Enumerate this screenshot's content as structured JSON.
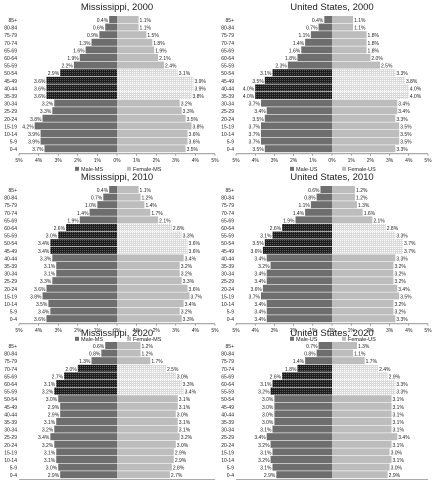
{
  "colors": {
    "male": "#6e6e6e",
    "female": "#bdbdbd",
    "male_highlight": "#1e1e1e",
    "female_highlight": "#dadada",
    "highlight_pattern": "dotted/hatched (baby-boom cohort)",
    "axis": "#555555",
    "text": "#222222"
  },
  "chart_data": [
    {
      "type": "bar",
      "title": "Mississippi, 2000",
      "categories": [
        "85+",
        "80-84",
        "75-79",
        "70-74",
        "65-69",
        "60-64",
        "55-59",
        "50-54",
        "45-49",
        "40-44",
        "35-39",
        "30-34",
        "25-29",
        "20-24",
        "15-19",
        "10-14",
        "5-9",
        "0-4"
      ],
      "series": [
        {
          "name": "Male-MS",
          "values": [
            0.4,
            0.6,
            0.9,
            1.3,
            1.6,
            1.9,
            2.2,
            2.9,
            3.6,
            3.6,
            3.6,
            3.2,
            3.3,
            3.8,
            4.2,
            3.9,
            3.9,
            3.7
          ]
        },
        {
          "name": "Female-MS",
          "values": [
            1.1,
            1.1,
            1.5,
            1.8,
            1.9,
            2.1,
            2.4,
            3.1,
            3.9,
            3.9,
            3.8,
            3.2,
            3.3,
            3.5,
            3.8,
            3.6,
            3.6,
            3.5
          ]
        }
      ],
      "highlight_categories": [
        "50-54",
        "45-49",
        "40-44",
        "35-39"
      ],
      "xticks": [
        "5%",
        "4%",
        "3%",
        "2%",
        "1%",
        "0%",
        "1%",
        "2%",
        "3%",
        "4%",
        "5%"
      ],
      "xlim": [
        -5,
        5
      ],
      "legend_position": "bottom"
    },
    {
      "type": "bar",
      "title": "United States, 2000",
      "categories": [
        "85+",
        "80-84",
        "75-79",
        "70-74",
        "65-69",
        "60-64",
        "55-59",
        "50-54",
        "45-49",
        "40-44",
        "35-39",
        "30-34",
        "25-29",
        "20-24",
        "15-19",
        "10-14",
        "5-9",
        "0-4"
      ],
      "series": [
        {
          "name": "Male-US",
          "values": [
            0.4,
            0.7,
            1.1,
            1.4,
            1.6,
            1.8,
            2.3,
            3.1,
            3.5,
            4.0,
            4.0,
            3.7,
            3.4,
            3.5,
            3.7,
            3.7,
            3.7,
            3.5
          ]
        },
        {
          "name": "Female-US",
          "values": [
            1.1,
            1.1,
            1.8,
            1.8,
            1.8,
            2.0,
            2.5,
            3.3,
            3.8,
            4.0,
            4.0,
            3.4,
            3.4,
            3.3,
            3.5,
            3.5,
            3.5,
            3.3
          ]
        }
      ],
      "highlight_categories": [
        "50-54",
        "45-49",
        "40-44",
        "35-39"
      ],
      "xticks": [
        "5%",
        "4%",
        "3%",
        "2%",
        "1%",
        "0%",
        "1%",
        "2%",
        "3%",
        "4%",
        "5%"
      ],
      "xlim": [
        -5,
        5
      ],
      "legend_position": "bottom"
    },
    {
      "type": "bar",
      "title": "Mississippi, 2010",
      "categories": [
        "85+",
        "80-84",
        "75-79",
        "70-74",
        "65-69",
        "60-64",
        "55-59",
        "50-54",
        "45-49",
        "40-44",
        "35-39",
        "30-34",
        "25-29",
        "20-24",
        "15-19",
        "10-14",
        "5-9",
        "0-4"
      ],
      "series": [
        {
          "name": "Male-MS",
          "values": [
            0.4,
            0.7,
            1.0,
            1.4,
            1.9,
            2.6,
            3.0,
            3.4,
            3.4,
            3.3,
            3.1,
            3.1,
            3.3,
            3.6,
            3.8,
            3.5,
            3.4,
            3.6
          ]
        },
        {
          "name": "Female-MS",
          "values": [
            1.1,
            1.2,
            1.4,
            1.7,
            2.1,
            2.8,
            3.3,
            3.6,
            3.6,
            3.4,
            3.2,
            3.2,
            3.3,
            3.6,
            3.7,
            3.4,
            3.2,
            3.3
          ]
        }
      ],
      "highlight_categories": [
        "60-64",
        "55-59",
        "50-54",
        "45-49"
      ],
      "xticks": [
        "5%",
        "4%",
        "3%",
        "2%",
        "1%",
        "0%",
        "1%",
        "2%",
        "3%",
        "4%",
        "5%"
      ],
      "xlim": [
        -5,
        5
      ],
      "legend_position": "bottom"
    },
    {
      "type": "bar",
      "title": "United States, 2010",
      "categories": [
        "85+",
        "80-84",
        "75-79",
        "70-74",
        "65-69",
        "60-64",
        "55-59",
        "50-54",
        "45-49",
        "40-44",
        "35-39",
        "30-34",
        "25-29",
        "20-24",
        "15-19",
        "10-14",
        "5-9",
        "0-4"
      ],
      "series": [
        {
          "name": "Male-US",
          "values": [
            0.6,
            0.8,
            1.1,
            1.4,
            1.9,
            2.6,
            3.1,
            3.5,
            3.6,
            3.4,
            3.2,
            3.4,
            3.4,
            3.6,
            3.7,
            3.4,
            3.4,
            3.4
          ]
        },
        {
          "name": "Female-US",
          "values": [
            1.2,
            1.2,
            1.3,
            1.6,
            2.1,
            2.8,
            3.3,
            3.7,
            3.7,
            3.3,
            3.2,
            3.2,
            3.2,
            3.4,
            3.5,
            3.2,
            3.2,
            3.3
          ]
        }
      ],
      "highlight_categories": [
        "60-64",
        "55-59",
        "50-54",
        "45-49"
      ],
      "xticks": [
        "5%",
        "4%",
        "3%",
        "2%",
        "1%",
        "0%",
        "1%",
        "2%",
        "3%",
        "4%",
        "5%"
      ],
      "xlim": [
        -5,
        5
      ],
      "legend_position": "bottom"
    },
    {
      "type": "bar",
      "title": "Mississippi, 2020",
      "categories": [
        "85+",
        "80-84",
        "75-79",
        "70-74",
        "65-69",
        "60-64",
        "55-59",
        "50-54",
        "45-49",
        "40-44",
        "35-39",
        "30-34",
        "25-29",
        "20-24",
        "15-19",
        "10-14",
        "5-9",
        "0-4"
      ],
      "series": [
        {
          "name": "Male-MS",
          "values": [
            0.6,
            0.8,
            1.3,
            2.0,
            2.7,
            3.1,
            3.2,
            3.0,
            2.9,
            2.9,
            3.1,
            3.2,
            3.4,
            3.2,
            3.1,
            3.1,
            3.0,
            2.9
          ]
        },
        {
          "name": "Female-MS",
          "values": [
            1.2,
            1.2,
            1.7,
            2.5,
            3.0,
            3.3,
            3.4,
            3.1,
            3.1,
            3.0,
            3.1,
            3.1,
            3.2,
            3.0,
            2.9,
            2.9,
            2.8,
            2.7
          ]
        }
      ],
      "highlight_categories": [
        "70-74",
        "65-69",
        "60-64",
        "55-59"
      ],
      "xticks": [
        "5%",
        "4%",
        "3%",
        "2%",
        "1%",
        "0%",
        "1%",
        "2%",
        "3%",
        "4%",
        "5%"
      ],
      "xlim": [
        -5,
        5
      ],
      "legend_position": "bottom"
    },
    {
      "type": "bar",
      "title": "United States, 2020",
      "categories": [
        "85+",
        "80-84",
        "75-79",
        "70-74",
        "65-69",
        "60-64",
        "55-59",
        "50-54",
        "45-49",
        "40-44",
        "35-39",
        "30-34",
        "25-29",
        "20-24",
        "15-19",
        "10-14",
        "5-9",
        "0-4"
      ],
      "series": [
        {
          "name": "Male-US",
          "values": [
            0.7,
            0.8,
            1.4,
            1.8,
            2.6,
            3.1,
            3.2,
            3.0,
            3.0,
            3.0,
            3.0,
            3.1,
            3.4,
            3.2,
            3.1,
            3.2,
            3.1,
            2.9
          ]
        },
        {
          "name": "Female-US",
          "values": [
            1.3,
            1.1,
            1.7,
            2.4,
            2.9,
            3.3,
            3.3,
            3.1,
            3.1,
            3.1,
            3.1,
            3.1,
            3.4,
            3.1,
            3.0,
            3.1,
            3.0,
            2.9
          ]
        }
      ],
      "highlight_categories": [
        "70-74",
        "65-69",
        "60-64",
        "55-59"
      ],
      "xticks": [
        "5%",
        "4%",
        "3%",
        "2%",
        "1%",
        "0%",
        "1%",
        "2%",
        "3%",
        "4%",
        "5%"
      ],
      "xlim": [
        -5,
        5
      ],
      "legend_position": "bottom"
    }
  ]
}
